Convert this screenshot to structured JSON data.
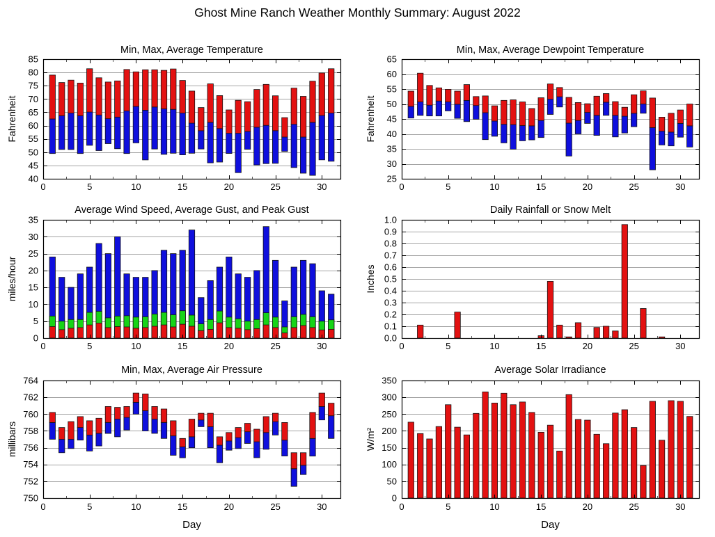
{
  "page_title": "Ghost Mine Ranch Weather Monthly Summary: August 2022",
  "days": [
    1,
    2,
    3,
    4,
    5,
    6,
    7,
    8,
    9,
    10,
    11,
    12,
    13,
    14,
    15,
    16,
    17,
    18,
    19,
    20,
    21,
    22,
    23,
    24,
    25,
    26,
    27,
    28,
    29,
    30,
    31
  ],
  "chart_data": [
    {
      "id": "temperature",
      "type": "range",
      "title": "Min, Max, Average Temperature",
      "ylabel": "Fahrenheit",
      "xlabel": "",
      "ylim": [
        40,
        85
      ],
      "yticks": [
        40,
        45,
        50,
        55,
        60,
        65,
        70,
        75,
        80,
        85
      ],
      "ydecimals": 0,
      "xlim": [
        0,
        32
      ],
      "xticks": [
        0,
        5,
        10,
        15,
        20,
        25,
        30
      ],
      "xminor_step": 2.5,
      "grid": "horizontal",
      "colors": {
        "min_to_avg": "#0f0fdd",
        "avg_to_max": "#e31111"
      },
      "min": [
        49.5,
        51.0,
        51.0,
        49.5,
        52.6,
        50.6,
        53.2,
        51.3,
        49.5,
        53.5,
        47.1,
        51.2,
        49.2,
        49.6,
        49.0,
        49.6,
        51.2,
        46.0,
        46.3,
        49.5,
        42.3,
        51.1,
        45.2,
        45.7,
        45.8,
        50.3,
        44.2,
        42.1,
        41.3,
        47.1,
        46.6
      ],
      "avg": [
        62.5,
        63.7,
        64.7,
        63.7,
        65.1,
        64.0,
        62.6,
        63.2,
        65.5,
        67.2,
        65.8,
        67.0,
        66.3,
        66.1,
        64.7,
        60.9,
        58.1,
        61.2,
        58.9,
        57.1,
        57.1,
        57.8,
        59.4,
        60.1,
        58.1,
        55.7,
        60.5,
        55.7,
        61.2,
        63.8,
        64.7
      ],
      "max": [
        79.0,
        76.2,
        77.1,
        76.0,
        81.4,
        78.0,
        76.4,
        76.8,
        81.1,
        80.2,
        81.0,
        81.0,
        80.8,
        81.3,
        77.0,
        73.0,
        66.8,
        75.7,
        71.3,
        65.9,
        69.5,
        69.0,
        73.6,
        75.5,
        71.2,
        63.0,
        74.1,
        71.0,
        76.7,
        79.8,
        81.4
      ]
    },
    {
      "id": "dewpoint",
      "type": "range",
      "title": "Min, Max, Average Dewpoint Temperature",
      "ylabel": "Fahrenheit",
      "xlabel": "",
      "ylim": [
        25,
        65
      ],
      "yticks": [
        25,
        30,
        35,
        40,
        45,
        50,
        55,
        60,
        65
      ],
      "ydecimals": 0,
      "xlim": [
        0,
        32
      ],
      "xticks": [
        0,
        5,
        10,
        15,
        20,
        25,
        30
      ],
      "xminor_step": 2.5,
      "grid": "horizontal",
      "colors": {
        "min_to_avg": "#0f0fdd",
        "avg_to_max": "#e31111"
      },
      "min": [
        45.3,
        46.2,
        46.0,
        46.0,
        47.7,
        45.2,
        44.1,
        44.9,
        38.1,
        39.2,
        37.0,
        34.9,
        37.7,
        38.0,
        38.8,
        46.5,
        49.0,
        32.6,
        40.0,
        43.5,
        39.5,
        46.2,
        39.0,
        40.3,
        42.4,
        46.9,
        28.0,
        36.3,
        36.0,
        38.9,
        35.6
      ],
      "avg": [
        49.2,
        50.7,
        49.6,
        51.0,
        50.7,
        49.9,
        51.2,
        49.5,
        47.1,
        44.3,
        43.2,
        43.1,
        42.8,
        42.7,
        44.5,
        51.6,
        52.4,
        43.6,
        44.5,
        47.2,
        46.2,
        50.6,
        46.2,
        45.9,
        46.9,
        50.0,
        42.1,
        40.9,
        40.6,
        43.5,
        42.7
      ],
      "max": [
        54.3,
        60.3,
        56.2,
        55.4,
        54.9,
        54.3,
        56.5,
        52.5,
        52.7,
        49.4,
        51.2,
        51.4,
        50.7,
        48.5,
        52.1,
        56.7,
        55.5,
        52.2,
        50.5,
        50.1,
        52.6,
        53.5,
        50.8,
        48.9,
        53.1,
        54.4,
        52.0,
        45.6,
        46.9,
        48.0,
        50.0
      ]
    },
    {
      "id": "wind",
      "type": "overlay",
      "title": "Average Wind Speed, Average Gust, and Peak Gust",
      "ylabel": "miles/hour",
      "xlabel": "",
      "ylim": [
        0,
        35
      ],
      "yticks": [
        0,
        5,
        10,
        15,
        20,
        25,
        30,
        35
      ],
      "ydecimals": 0,
      "xlim": [
        0,
        32
      ],
      "xticks": [
        0,
        5,
        10,
        15,
        20,
        25,
        30
      ],
      "xminor_step": 2.5,
      "grid": "horizontal",
      "series": [
        {
          "name": "Peak Gust",
          "color": "#0f0fdd",
          "values": [
            24,
            18,
            15,
            19,
            21,
            28,
            25,
            30,
            19,
            18,
            18,
            20,
            26,
            25,
            26,
            32,
            12,
            17,
            21,
            24,
            19,
            18,
            20,
            33,
            23,
            11,
            21,
            23,
            22,
            14,
            13
          ]
        },
        {
          "name": "Average Gust",
          "color": "#17d417",
          "values": [
            6.5,
            5.0,
            5.5,
            5.5,
            7.6,
            7.9,
            6.0,
            6.5,
            6.6,
            6.2,
            6.3,
            7.1,
            7.6,
            6.9,
            8.1,
            6.8,
            4.2,
            5.5,
            8.0,
            6.2,
            5.7,
            5.0,
            5.5,
            7.5,
            6.2,
            3.3,
            6.3,
            7.0,
            6.3,
            5.0,
            5.4
          ]
        },
        {
          "name": "Average Wind Speed",
          "color": "#e31111",
          "values": [
            3.4,
            2.5,
            2.9,
            3.1,
            3.9,
            4.4,
            3.1,
            3.4,
            3.3,
            2.9,
            3.1,
            3.5,
            3.9,
            3.3,
            4.1,
            3.5,
            2.2,
            2.6,
            4.5,
            3.1,
            2.9,
            2.5,
            2.8,
            3.9,
            3.1,
            1.5,
            3.1,
            3.7,
            3.1,
            2.4,
            2.6
          ]
        }
      ]
    },
    {
      "id": "rainfall",
      "type": "bar",
      "title": "Daily Rainfall or Snow Melt",
      "ylabel": "Inches",
      "xlabel": "",
      "ylim": [
        0,
        1.0
      ],
      "yticks": [
        0,
        0.1,
        0.2,
        0.3,
        0.4,
        0.5,
        0.6,
        0.7,
        0.8,
        0.9,
        1.0
      ],
      "ydecimals": 1,
      "xlim": [
        0,
        32
      ],
      "xticks": [
        0,
        5,
        10,
        15,
        20,
        25,
        30
      ],
      "xminor_step": 2.5,
      "grid": "horizontal",
      "color": "#e31111",
      "values": [
        0,
        0.11,
        0,
        0,
        0,
        0.22,
        0,
        0,
        0,
        0,
        0,
        0,
        0,
        0,
        0.02,
        0.48,
        0.11,
        0.01,
        0.13,
        0,
        0.09,
        0.1,
        0.06,
        0.96,
        0,
        0.25,
        0,
        0.01,
        0,
        0,
        0
      ]
    },
    {
      "id": "pressure",
      "type": "range",
      "title": "Min, Max, Average Air Pressure",
      "ylabel": "millibars",
      "xlabel": "Day",
      "ylim": [
        750,
        764
      ],
      "yticks": [
        750,
        752,
        754,
        756,
        758,
        760,
        762,
        764
      ],
      "ydecimals": 0,
      "xlim": [
        0,
        32
      ],
      "xticks": [
        0,
        5,
        10,
        15,
        20,
        25,
        30
      ],
      "xminor_step": 2.5,
      "grid": "horizontal",
      "colors": {
        "min_to_avg": "#0f0fdd",
        "avg_to_max": "#e31111"
      },
      "min": [
        757.0,
        755.4,
        755.9,
        756.9,
        755.6,
        756.2,
        757.7,
        757.3,
        758.1,
        760.0,
        758.0,
        757.7,
        757.1,
        755.1,
        754.8,
        756.0,
        758.5,
        756.0,
        754.2,
        755.7,
        755.9,
        756.5,
        754.8,
        755.8,
        757.5,
        755.0,
        751.4,
        752.8,
        755.0,
        759.3,
        757.1
      ],
      "avg": [
        759.0,
        757.0,
        757.0,
        758.4,
        757.5,
        757.7,
        759.0,
        759.4,
        759.6,
        761.4,
        760.4,
        759.4,
        759.0,
        757.4,
        756.1,
        757.3,
        759.3,
        758.5,
        756.3,
        756.8,
        757.2,
        757.9,
        756.7,
        757.8,
        759.1,
        756.9,
        753.5,
        753.9,
        757.1,
        760.9,
        759.8
      ],
      "max": [
        760.2,
        758.4,
        759.1,
        759.7,
        759.2,
        759.5,
        760.9,
        760.8,
        760.9,
        762.5,
        762.4,
        760.9,
        760.6,
        759.2,
        757.1,
        759.4,
        760.1,
        760.1,
        757.3,
        757.8,
        758.4,
        758.9,
        758.2,
        759.7,
        760.1,
        759.0,
        755.4,
        755.4,
        760.2,
        762.5,
        761.3
      ]
    },
    {
      "id": "solar",
      "type": "bar",
      "title": "Average Solar Irradiance",
      "ylabel": "W/m²",
      "xlabel": "Day",
      "ylim": [
        0,
        350
      ],
      "yticks": [
        0,
        50,
        100,
        150,
        200,
        250,
        300,
        350
      ],
      "ydecimals": 0,
      "xlim": [
        0,
        32
      ],
      "xticks": [
        0,
        5,
        10,
        15,
        20,
        25,
        30
      ],
      "xminor_step": 2.5,
      "grid": "horizontal",
      "color": "#e31111",
      "values": [
        226,
        192,
        176,
        213,
        278,
        211,
        188,
        252,
        316,
        283,
        312,
        278,
        286,
        255,
        196,
        217,
        140,
        308,
        234,
        232,
        190,
        162,
        253,
        263,
        210,
        97,
        288,
        172,
        290,
        288,
        243
      ]
    }
  ]
}
